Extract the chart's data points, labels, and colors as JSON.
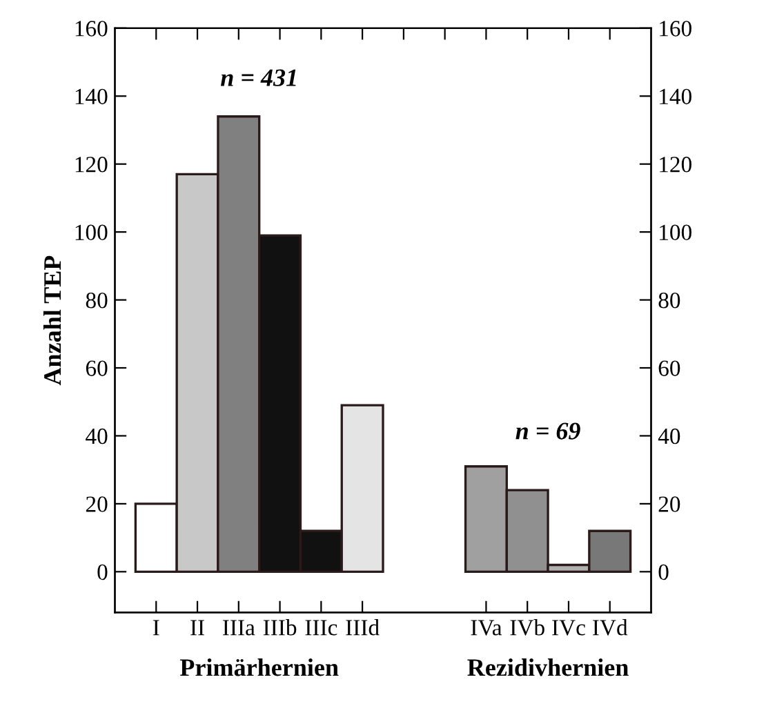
{
  "chart_data": {
    "type": "bar",
    "ylabel": "Anzahl TEP",
    "categories": [
      "I",
      "II",
      "IIIa",
      "IIIb",
      "IIIc",
      "IIId",
      null,
      null,
      "IVa",
      "IVb",
      "IVc",
      "IVd"
    ],
    "values": [
      20,
      117,
      134,
      99,
      12,
      49,
      null,
      null,
      31,
      24,
      2,
      12
    ],
    "colors": [
      "#ffffff",
      "#c8c8c8",
      "#808080",
      "#111111",
      "#111111",
      "#e4e4e4",
      "#ffffff",
      "#ffffff",
      "#a0a0a0",
      "#909090",
      "#b0b0b0",
      "#787878"
    ],
    "ylim": [
      -12,
      160
    ],
    "yticks": [
      0,
      20,
      40,
      60,
      80,
      100,
      120,
      140,
      160
    ],
    "y2lim": [
      -12,
      160
    ],
    "y2ticks": [
      0,
      20,
      40,
      60,
      80,
      100,
      120,
      140,
      160
    ],
    "annotations": [
      "n = 431",
      "n = 69",
      "Primärhernien",
      "Rezidivhernien"
    ],
    "grid": false,
    "legend": false
  }
}
